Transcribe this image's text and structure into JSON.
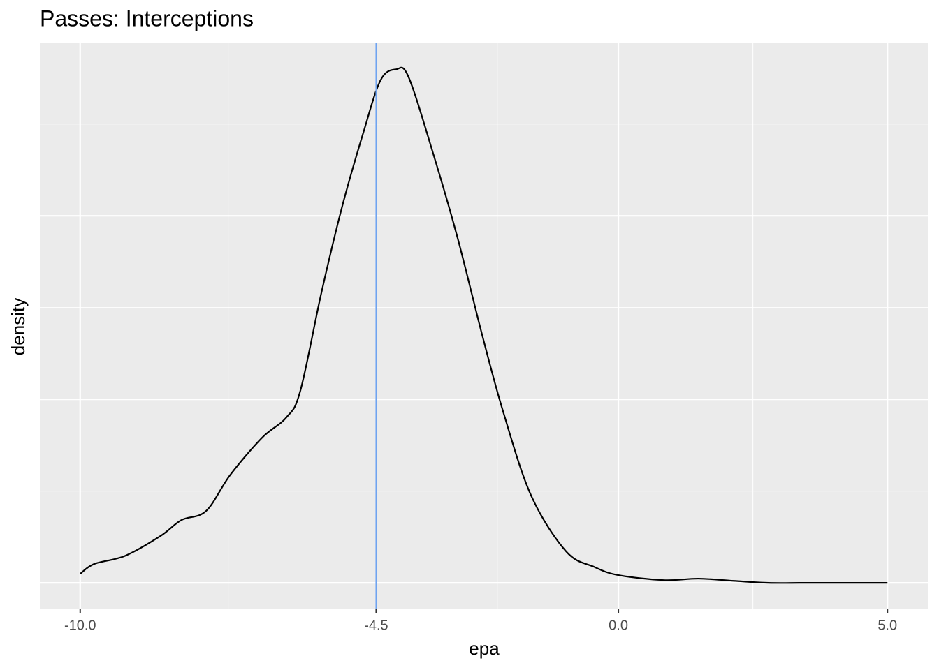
{
  "chart_data": {
    "type": "density",
    "title": "Passes: Interceptions",
    "x_label": "epa",
    "y_label": "density",
    "x": [
      -10,
      -9.74,
      -9.16,
      -8.51,
      -8.12,
      -7.66,
      -7.21,
      -6.62,
      -6.17,
      -5.91,
      -5.52,
      -5.13,
      -4.74,
      -4.42,
      -4.13,
      -3.9,
      -3.44,
      -2.99,
      -2.53,
      -2.14,
      -1.62,
      -0.97,
      -0.45,
      0,
      0.84,
      1.49,
      2.14,
      2.79,
      3.44,
      4.09,
      5
    ],
    "values": [
      0.0049,
      0.0103,
      0.0148,
      0.0255,
      0.0342,
      0.0392,
      0.0589,
      0.0791,
      0.0901,
      0.1046,
      0.1578,
      0.2053,
      0.2452,
      0.2738,
      0.2798,
      0.2757,
      0.2338,
      0.1882,
      0.135,
      0.0932,
      0.0475,
      0.0171,
      0.0087,
      0.0042,
      0.0015,
      0.0023,
      0.0011,
      0,
      0,
      0,
      0
    ],
    "color": "#000000",
    "vline": {
      "value": -4.5,
      "color": "#6fa3ef"
    },
    "xlim": [
      -10.75,
      5.75
    ],
    "xticks": [
      {
        "value": -10,
        "label": "-10.0"
      },
      -4.5,
      {
        "value": 0,
        "label": "0.0"
      },
      {
        "value": 5,
        "label": "5.0"
      }
    ],
    "ylim": [
      -0.0144,
      0.294
    ],
    "yticks": [
      0,
      0.1,
      0.2
    ],
    "grid": true
  }
}
